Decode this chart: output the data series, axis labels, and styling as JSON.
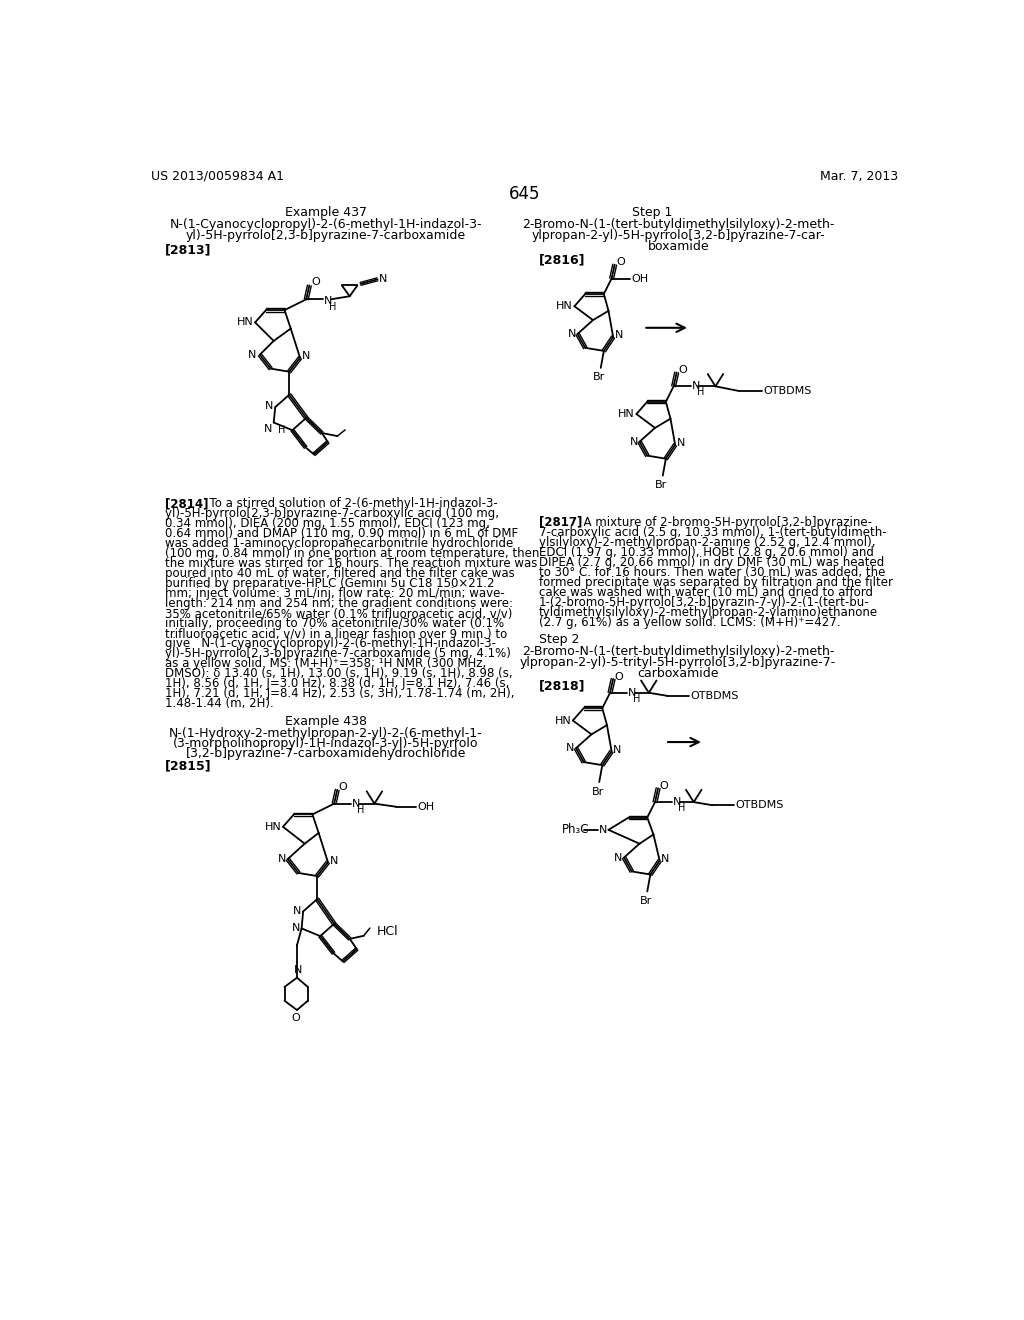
{
  "page_number": "645",
  "patent_number": "US 2013/0059834 A1",
  "patent_date": "Mar. 7, 2013",
  "bg": "#ffffff",
  "tc": "#000000",
  "left_title": "Example 437",
  "left_sub1": "N-(1-Cyanocyclopropyl)-2-(6-methyl-1H-indazol-3-",
  "left_sub2": "yl)-5H-pyrrolo[2,3-b]pyrazine-7-carboxamide",
  "left_ref": "[2813]",
  "right_title": "Step 1",
  "right_sub1": "2-Bromo-N-(1-(tert-butyldimethylsilyloxy)-2-meth-",
  "right_sub2": "ylpropan-2-yl)-5H-pyrrolo[3,2-b]pyrazine-7-car-",
  "right_sub3": "boxamide",
  "right_ref": "[2816]",
  "body_left_lines": [
    "[2814]   To a stirred solution of 2-(6-methyl-1H-indazol-3-",
    "yl)-5H-pyrrolo[2,3-b]pyrazine-7-carboxylic acid (100 mg,",
    "0.34 mmol), DIEA (200 mg, 1.55 mmol), EDCI (123 mg,",
    "0.64 mmol) and DMAP (110 mg, 0.90 mmol) in 6 mL of DMF",
    "was added 1-aminocyclopropanecarbonitrile hydrochloride",
    "(100 mg, 0.84 mmol) in one portion at room temperature, then",
    "the mixture was stirred for 16 hours. The reaction mixture was",
    "poured into 40 mL of water, filtered and the filter cake was",
    "purified by preparative-HPLC (Gemini 5u C18 150×21.2",
    "mm; inject volume: 3 mL/inj, flow rate: 20 mL/min; wave-",
    "length: 214 nm and 254 nm; the gradient conditions were:",
    "35% acetonitrile/65% water (0.1% trifluoroacetic acid, v/v)",
    "initially, proceeding to 70% acetonitrile/30% water (0.1%",
    "trifluoroacetic acid, v/v) in a linear fashion over 9 min.) to",
    "give   N-(1-cyanocyclopropyl)-2-(6-methyl-1H-indazol-3-",
    "yl)-5H-pyrrolo[2,3-b]pyrazine-7-carboxamide (5 mg, 4.1%)",
    "as a yellow solid. MS: (M+H)⁺=358; ¹H NMR (300 MHz,",
    "DMSO): δ 13.40 (s, 1H), 13.00 (s, 1H), 9.19 (s, 1H), 8.98 (s,",
    "1H), 8.56 (d, 1H, J=3.0 Hz), 8.38 (d, 1H, J=8.1 Hz), 7.46 (s,",
    "1H), 7.21 (d, 1H, J=8.4 Hz), 2.53 (s, 3H), 1.78-1.74 (m, 2H),",
    "1.48-1.44 (m, 2H)."
  ],
  "ex438_title": "Example 438",
  "ex438_sub1": "N-(1-Hydroxy-2-methylpropan-2-yl)-2-(6-methyl-1-",
  "ex438_sub2": "(3-morpholinopropyl)-1H-indazol-3-yl)-5H-pyrrolo",
  "ex438_sub3": "[3,2-b]pyrazine-7-carboxamidehydrochloride",
  "ex438_ref": "[2815]",
  "body_right_lines": [
    "[2817]   A mixture of 2-bromo-5H-pyrrolo[3,2-b]pyrazine-",
    "7-carboxylic acid (2.5 g, 10.33 mmol), 1-(tert-butyldimeth-",
    "ylsilyloxy)-2-methylpropan-2-amine (2.52 g, 12.4 mmol),",
    "EDCI (1.97 g, 10.33 mmol), HOBt (2.8 g, 20.6 mmol) and",
    "DIPEA (2.7 g, 20.66 mmol) in dry DMF (30 mL) was heated",
    "to 30° C. for 16 hours. Then water (30 mL) was added, the",
    "formed precipitate was separated by filtration and the filter",
    "cake was washed with water (10 mL) and dried to afford",
    "1-(2-bromo-5H-pyrrolo[3,2-b]pyrazin-7-yl)-2-(1-(tert-bu-",
    "tyldimethylsilyloxy)-2-methylpropan-2-ylamino)ethanone",
    "(2.7 g, 61%) as a yellow solid. LCMS: (M+H)⁺=427."
  ],
  "step2_title": "Step 2",
  "step2_sub1": "2-Bromo-N-(1-(tert-butyldimethylsilyloxy)-2-meth-",
  "step2_sub2": "ylpropan-2-yl)-5-trityl-5H-pyrrolo[3,2-b]pyrazine-7-",
  "step2_sub3": "carboxamide",
  "step2_ref": "[2818]"
}
